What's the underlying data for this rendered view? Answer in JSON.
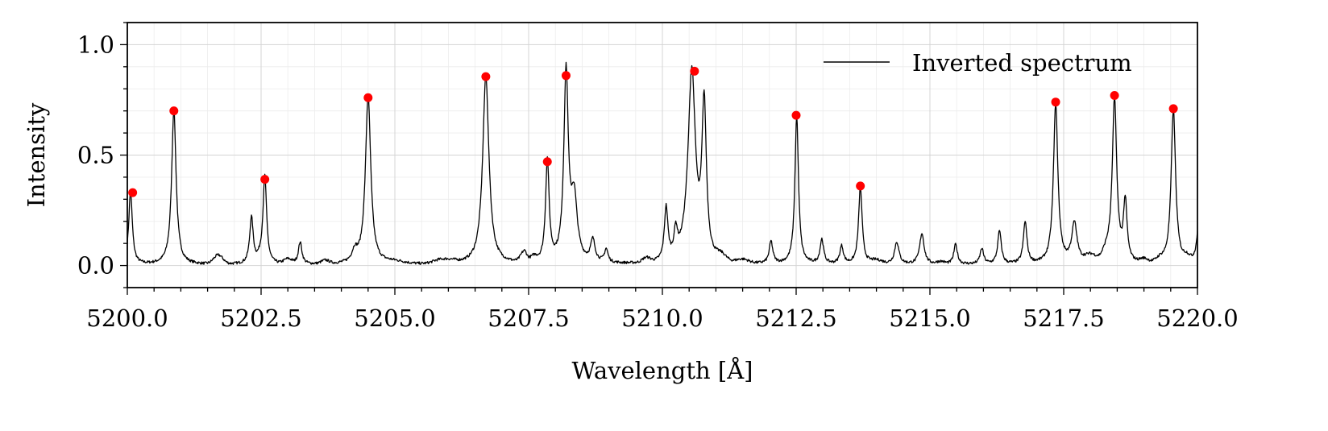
{
  "chart_data": {
    "type": "line",
    "title": "",
    "xlabel": "Wavelength [Å]",
    "ylabel": "Intensity",
    "xlim": [
      5200.0,
      5220.0
    ],
    "ylim": [
      -0.1,
      1.1
    ],
    "x_ticks": [
      5200.0,
      5202.5,
      5205.0,
      5207.5,
      5210.0,
      5212.5,
      5215.0,
      5217.5,
      5220.0
    ],
    "x_tick_labels": [
      "5200.0",
      "5202.5",
      "5205.0",
      "5207.5",
      "5210.0",
      "5212.5",
      "5215.0",
      "5217.5",
      "5220.0"
    ],
    "y_ticks": [
      0.0,
      0.5,
      1.0
    ],
    "y_tick_labels": [
      "0.0",
      "0.5",
      "1.0"
    ],
    "grid": true,
    "legend": {
      "position": "top-right",
      "entries": [
        "Inverted spectrum"
      ]
    },
    "colors": {
      "line": "#000000",
      "markers": "#ff0000"
    },
    "baseline_bumps": [
      [
        5201.7,
        0.04,
        0.12
      ],
      [
        5202.5,
        0.02,
        0.08
      ],
      [
        5203.0,
        0.02,
        0.1
      ],
      [
        5203.7,
        0.015,
        0.1
      ],
      [
        5205.0,
        0.01,
        0.25
      ],
      [
        5205.8,
        0.01,
        0.15
      ],
      [
        5206.0,
        0.015,
        0.2
      ],
      [
        5207.4,
        0.03,
        0.08
      ],
      [
        5207.6,
        0.02,
        0.08
      ],
      [
        5209.7,
        0.02,
        0.1
      ],
      [
        5210.5,
        0.05,
        0.15
      ],
      [
        5211.1,
        0.025,
        0.12
      ],
      [
        5211.5,
        0.015,
        0.15
      ],
      [
        5214.0,
        0.015,
        0.15
      ],
      [
        5215.2,
        0.01,
        0.1
      ],
      [
        5218.0,
        0.03,
        0.15
      ],
      [
        5218.3,
        0.04,
        0.1
      ],
      [
        5219.0,
        0.015,
        0.1
      ],
      [
        5219.3,
        0.015,
        0.1
      ],
      [
        5219.8,
        0.02,
        0.08
      ]
    ],
    "series": [
      {
        "name": "Inverted spectrum",
        "style": "line",
        "peaks": [
          [
            5200.06,
            0.33,
            0.04
          ],
          [
            5200.87,
            0.7,
            0.05
          ],
          [
            5202.32,
            0.21,
            0.04
          ],
          [
            5202.57,
            0.39,
            0.04
          ],
          [
            5203.23,
            0.1,
            0.04
          ],
          [
            5204.25,
            0.05,
            0.06
          ],
          [
            5204.5,
            0.76,
            0.06
          ],
          [
            5206.7,
            0.85,
            0.07
          ],
          [
            5207.43,
            0.02,
            0.05
          ],
          [
            5207.85,
            0.46,
            0.04
          ],
          [
            5208.2,
            0.85,
            0.05
          ],
          [
            5208.35,
            0.28,
            0.07
          ],
          [
            5208.7,
            0.1,
            0.05
          ],
          [
            5208.95,
            0.06,
            0.04
          ],
          [
            5210.07,
            0.24,
            0.04
          ],
          [
            5210.25,
            0.12,
            0.04
          ],
          [
            5210.55,
            0.82,
            0.08
          ],
          [
            5210.78,
            0.7,
            0.05
          ],
          [
            5212.03,
            0.1,
            0.04
          ],
          [
            5212.51,
            0.67,
            0.04
          ],
          [
            5212.98,
            0.11,
            0.04
          ],
          [
            5213.35,
            0.08,
            0.04
          ],
          [
            5213.7,
            0.35,
            0.04
          ],
          [
            5214.38,
            0.1,
            0.05
          ],
          [
            5214.85,
            0.14,
            0.05
          ],
          [
            5215.48,
            0.09,
            0.04
          ],
          [
            5215.97,
            0.07,
            0.04
          ],
          [
            5216.3,
            0.15,
            0.04
          ],
          [
            5216.78,
            0.19,
            0.04
          ],
          [
            5217.35,
            0.72,
            0.05
          ],
          [
            5217.7,
            0.18,
            0.06
          ],
          [
            5218.45,
            0.74,
            0.05
          ],
          [
            5218.65,
            0.27,
            0.04
          ],
          [
            5219.55,
            0.7,
            0.05
          ],
          [
            5220.05,
            0.38,
            0.04
          ]
        ]
      },
      {
        "name": "",
        "style": "markers",
        "points": [
          [
            5200.1,
            0.33
          ],
          [
            5200.87,
            0.7
          ],
          [
            5202.57,
            0.39
          ],
          [
            5204.5,
            0.76
          ],
          [
            5206.7,
            0.855
          ],
          [
            5207.85,
            0.47
          ],
          [
            5208.2,
            0.86
          ],
          [
            5210.6,
            0.88
          ],
          [
            5212.5,
            0.68
          ],
          [
            5213.7,
            0.36
          ],
          [
            5217.35,
            0.74
          ],
          [
            5218.45,
            0.77
          ],
          [
            5219.55,
            0.71
          ]
        ]
      }
    ]
  }
}
